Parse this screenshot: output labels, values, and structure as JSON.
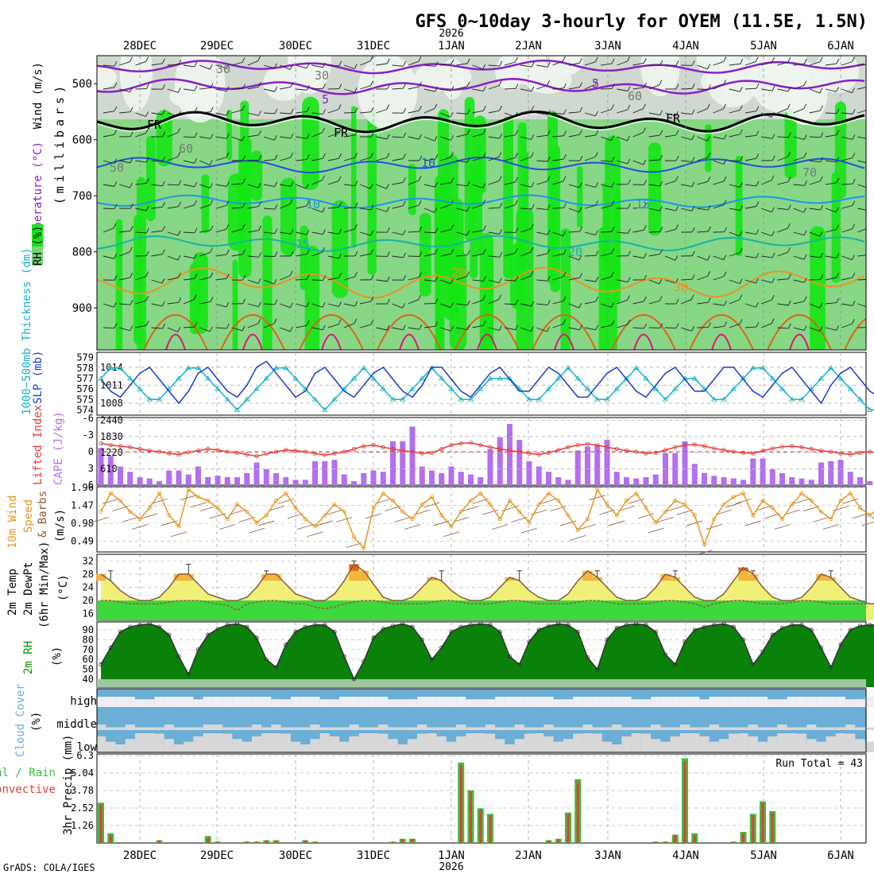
{
  "header": {
    "title": "GFS 0~10day 3-hourly for OYEM (11.5E, 1.5N)",
    "year": "2026",
    "credit": "GrADS: COLA/IGES"
  },
  "colors": {
    "rh_light": "#cfd9cf",
    "rh_mid": "#7ad67a",
    "rh_high": "#14e614",
    "temp_5_upper": "#8c1ec8",
    "temp_fr": "#000000",
    "temp_m5": "#1e50dc",
    "temp_10": "#1e96e6",
    "temp_15": "#14b4a0",
    "temp_20": "#e6961e",
    "temp_25": "#dc6414",
    "temp_30": "#dc1478",
    "slp": "#1e3cc8",
    "thickness": "#14b4c8",
    "lifted_index": "#e63c3c",
    "cape": "#b46ef0",
    "wind_speed": "#e6961e",
    "barb": "#8c5a3c",
    "temp_fill_low": "#f0f078",
    "temp_fill_mid": "#f5b43c",
    "temp_fill_high": "#e6641e",
    "dewpoint": "#a05050",
    "rh_green": "#0a960a",
    "cloud_blue": "#6baed6",
    "cloud_light": "#f0eef5",
    "cloud_gray": "#d8d8d8",
    "precip_total": "#3cbe3c",
    "precip_conv": "#e63c3c"
  },
  "dates": [
    "28DEC",
    "29DEC",
    "30DEC",
    "31DEC",
    "1JAN",
    "2JAN",
    "3JAN",
    "4JAN",
    "5JAN",
    "6JAN"
  ],
  "panels": {
    "upper": {
      "label_wind": "Wind (m/s)",
      "label_temp": "Temperature (°C)",
      "label_rh": "RH (%)",
      "label_mb": "(millibars)",
      "pressure_ticks": [
        "500",
        "600",
        "700",
        "800",
        "900"
      ],
      "contour_labels": [
        "5",
        "FR",
        "FR",
        "FR",
        "5",
        "10",
        "10",
        "15",
        "15",
        "20",
        "20",
        "30",
        "30",
        "30",
        "60",
        "60",
        "50",
        "70"
      ]
    },
    "slp": {
      "label_thick": "1000~500mb Thickness (dm)",
      "label_slp": "SLP (mb)",
      "left_ticks": [
        "579",
        "578",
        "577",
        "576",
        "575",
        "574"
      ],
      "right_ticks": [
        "1014",
        "1011",
        "1008"
      ]
    },
    "cape": {
      "label_li": "Lifted Index",
      "label_cape": "CAPE (J/kg)",
      "left_ticks": [
        "-6",
        "-3",
        "0",
        "3",
        "6"
      ],
      "right_ticks": [
        "2440",
        "1830",
        "1220",
        "610"
      ]
    },
    "wind10m": {
      "label1": "10m Wind",
      "label2": "Speed",
      "label3": "& Barbs",
      "label_unit": "(m/s)",
      "ticks": [
        "1.96",
        "1.47",
        "0.98",
        "0.49"
      ]
    },
    "temp2m": {
      "label1": "2m Temp",
      "label2": "2m DewPt",
      "label3": "(6hr Min/Max)",
      "label_unit": "(°C)",
      "ticks": [
        "32",
        "28",
        "24",
        "20",
        "16"
      ]
    },
    "rh2m": {
      "label": "2m RH",
      "label_unit": "(%)",
      "ticks": [
        "90",
        "80",
        "70",
        "60",
        "50",
        "40"
      ]
    },
    "cloud": {
      "label": "Cloud Cover",
      "label_unit": "(%)",
      "levels": [
        "high",
        "middle",
        "low"
      ]
    },
    "precip": {
      "label1": "Total / Rain",
      "label2": "Convective",
      "label_axis": "3hr Precip (mm)",
      "ticks": [
        "6.3",
        "5.04",
        "3.78",
        "2.52",
        "1.26"
      ],
      "run_total": "Run Total = 43"
    }
  },
  "chart_data": {
    "type": "line",
    "x_labels": [
      "28DEC",
      "29DEC",
      "30DEC",
      "31DEC",
      "1JAN",
      "2JAN",
      "3JAN",
      "4JAN",
      "5JAN",
      "6JAN"
    ],
    "step_hours": 3,
    "slp_mb": [
      1012,
      1010,
      1009,
      1011,
      1013,
      1014,
      1012,
      1010,
      1008,
      1010,
      1013,
      1014,
      1012,
      1010,
      1009,
      1011,
      1014,
      1015,
      1013,
      1011,
      1009,
      1010,
      1013,
      1014,
      1012,
      1010,
      1009,
      1011,
      1013,
      1014,
      1012,
      1010,
      1009,
      1011,
      1014,
      1014,
      1012,
      1010,
      1009,
      1011,
      1013,
      1014,
      1012,
      1010,
      1010,
      1012,
      1014,
      1013,
      1011,
      1009,
      1009,
      1011,
      1013,
      1014,
      1012,
      1010,
      1009,
      1011,
      1013,
      1014,
      1012,
      1010,
      1010,
      1012,
      1014,
      1014,
      1012,
      1010,
      1009,
      1011,
      1013,
      1014,
      1012,
      1010,
      1008,
      1011,
      1013,
      1014,
      1012,
      1010,
      1009
    ],
    "thickness_dm": [
      577,
      578,
      578,
      577,
      576,
      575,
      575,
      576,
      577,
      578,
      578,
      577,
      576,
      575,
      574,
      575,
      576,
      577,
      578,
      578,
      577,
      576,
      575,
      574,
      575,
      576,
      577,
      578,
      577,
      576,
      575,
      575,
      576,
      577,
      578,
      577,
      576,
      575,
      575,
      576,
      577,
      577,
      577,
      576,
      575,
      575,
      576,
      577,
      578,
      577,
      576,
      575,
      575,
      576,
      577,
      578,
      577,
      576,
      575,
      576,
      577,
      577,
      576,
      575,
      575,
      576,
      577,
      578,
      578,
      577,
      576,
      575,
      575,
      576,
      577,
      578,
      577,
      576,
      575,
      574,
      574
    ],
    "lifted_index": [
      -1.5,
      -1.2,
      -1,
      -0.8,
      -0.5,
      -0.2,
      0,
      0.3,
      0.5,
      0.1,
      -0.2,
      -0.5,
      -0.3,
      0,
      0.2,
      0.5,
      0.8,
      0.4,
      0,
      -0.3,
      -0.2,
      0,
      0.3,
      0.6,
      0.3,
      0,
      -0.5,
      -1,
      -1.2,
      -0.8,
      -0.5,
      -0.2,
      0,
      0.3,
      0.2,
      -0.5,
      -1.2,
      -1.5,
      -1.6,
      -1.2,
      -0.8,
      -0.5,
      -0.2,
      0,
      0.3,
      0.5,
      0.2,
      -0.3,
      -0.8,
      -1.2,
      -1.4,
      -1.2,
      -0.8,
      -0.5,
      -0.2,
      0,
      0.3,
      0.2,
      -0.3,
      -0.8,
      -1.2,
      -1.3,
      -1,
      -0.6,
      -0.3,
      0,
      0.2,
      0.3,
      -0.2,
      -0.6,
      -0.9,
      -1,
      -0.8,
      -0.5,
      -0.2,
      0,
      0.3,
      0.5,
      0.2,
      0,
      0.2
    ],
    "cape_jkg": [
      1400,
      1100,
      700,
      500,
      300,
      250,
      150,
      550,
      550,
      400,
      700,
      300,
      350,
      300,
      300,
      450,
      850,
      600,
      450,
      300,
      200,
      200,
      900,
      900,
      950,
      400,
      150,
      450,
      550,
      500,
      1650,
      1650,
      2200,
      700,
      550,
      450,
      700,
      500,
      400,
      300,
      1350,
      1800,
      2300,
      1700,
      900,
      700,
      500,
      300,
      200,
      1300,
      1450,
      1500,
      1700,
      500,
      300,
      250,
      300,
      400,
      1200,
      1200,
      1650,
      800,
      450,
      350,
      300,
      250,
      200,
      1000,
      1000,
      600,
      450,
      300,
      250,
      200,
      850,
      900,
      950,
      500,
      300,
      150,
      150
    ],
    "wind10m_speed_ms": [
      1.3,
      1.8,
      1.6,
      1.3,
      1.1,
      1.4,
      1.8,
      1.2,
      0.9,
      1.9,
      1.7,
      1.6,
      1.4,
      1.1,
      1.5,
      1.3,
      1.0,
      1.2,
      1.6,
      1.8,
      1.4,
      1.1,
      0.9,
      1.2,
      1.5,
      1.3,
      0.6,
      0.3,
      1.4,
      1.8,
      1.6,
      1.3,
      1.1,
      1.5,
      1.7,
      1.2,
      0.9,
      1.3,
      1.6,
      1.8,
      1.5,
      1.1,
      1.6,
      1.3,
      1.0,
      1.5,
      1.8,
      1.6,
      1.2,
      0.8,
      1.1,
      1.9,
      1.5,
      1.2,
      1.6,
      1.8,
      1.4,
      1.0,
      1.3,
      1.6,
      1.5,
      1.2,
      0.4,
      1.1,
      1.5,
      1.7,
      1.8,
      1.2,
      1.6,
      1.4,
      1.1,
      1.5,
      1.8,
      1.6,
      1.3,
      1.1,
      1.6,
      1.8,
      1.4,
      1.2,
      1.4
    ],
    "temp2m_c": [
      28,
      26,
      23,
      21,
      20,
      20,
      21,
      24,
      28,
      28,
      25,
      22,
      21,
      20,
      20,
      21,
      24,
      28,
      28,
      25,
      22,
      21,
      20,
      20,
      22,
      26,
      31,
      29,
      25,
      21,
      20,
      20,
      21,
      24,
      27,
      26,
      23,
      21,
      20,
      20,
      21,
      24,
      27,
      26,
      23,
      21,
      20,
      20,
      22,
      26,
      29,
      27,
      24,
      21,
      20,
      20,
      21,
      24,
      28,
      27,
      24,
      21,
      20,
      20,
      22,
      26,
      30,
      28,
      24,
      21,
      20,
      20,
      21,
      24,
      28,
      27,
      24,
      21,
      20,
      19,
      19
    ],
    "temp2m_max_c": [
      null,
      29,
      null,
      null,
      null,
      null,
      null,
      null,
      null,
      31,
      null,
      null,
      null,
      null,
      null,
      null,
      null,
      29,
      null,
      null,
      null,
      null,
      null,
      null,
      null,
      null,
      32,
      null,
      null,
      null,
      null,
      null,
      null,
      null,
      null,
      29,
      null,
      null,
      null,
      null,
      null,
      null,
      null,
      29,
      null,
      null,
      null,
      null,
      null,
      null,
      null,
      29,
      null,
      null,
      null,
      null,
      null,
      null,
      null,
      29,
      null,
      null,
      null,
      null,
      null,
      null,
      null,
      29,
      null,
      null,
      null,
      null,
      null,
      null,
      null,
      29,
      null,
      null,
      null,
      null,
      null
    ],
    "dewpt2m_c": [
      20,
      20,
      19.5,
      19,
      19,
      19,
      19,
      19.5,
      20,
      20,
      20,
      19.5,
      19,
      18.5,
      17,
      19,
      19.5,
      20,
      20,
      19.5,
      19,
      19,
      18,
      17.5,
      18,
      19,
      19.5,
      20,
      20,
      19.5,
      19,
      19,
      19,
      19,
      19.5,
      20,
      20,
      19.5,
      19,
      19,
      19,
      19.5,
      20,
      20,
      19.5,
      19,
      19,
      19,
      19,
      19.5,
      20,
      20,
      19.5,
      19,
      19,
      19,
      19,
      19.5,
      20,
      20,
      19.5,
      19,
      18,
      19,
      19.5,
      20,
      20,
      19.5,
      19,
      19,
      19,
      19.5,
      20,
      20,
      19.5,
      19,
      19,
      19,
      19,
      19,
      19
    ],
    "rh2m_pct": [
      55,
      72,
      88,
      93,
      95,
      96,
      93,
      85,
      63,
      45,
      70,
      85,
      91,
      95,
      96,
      93,
      82,
      60,
      52,
      75,
      88,
      93,
      95,
      95,
      88,
      63,
      40,
      58,
      82,
      91,
      94,
      96,
      93,
      80,
      60,
      72,
      88,
      93,
      95,
      96,
      95,
      88,
      63,
      55,
      78,
      90,
      94,
      96,
      95,
      88,
      62,
      50,
      80,
      92,
      95,
      96,
      95,
      88,
      65,
      55,
      78,
      90,
      93,
      95,
      96,
      93,
      80,
      55,
      68,
      85,
      92,
      95,
      95,
      90,
      72,
      52,
      75,
      90,
      94,
      95,
      95
    ],
    "cloud_high_pct": [
      40,
      40,
      40,
      40,
      30,
      30,
      40,
      40,
      40,
      40,
      30,
      40,
      40,
      40,
      40,
      40,
      40,
      40,
      30,
      30,
      40,
      40,
      40,
      30,
      30,
      40,
      40,
      40,
      40,
      40,
      30,
      30,
      30,
      40,
      40,
      40,
      40,
      40,
      30,
      30,
      30,
      40,
      40,
      40,
      40,
      40,
      40,
      30,
      30,
      40,
      40,
      40,
      40,
      40,
      40,
      30,
      30,
      40,
      40,
      40,
      40,
      40,
      30,
      40,
      40,
      40,
      40,
      40,
      40,
      30,
      30,
      40,
      40,
      40,
      40,
      40,
      40,
      30,
      30,
      40,
      40
    ],
    "cloud_mid_pct": [
      20,
      10,
      10,
      20,
      10,
      10,
      10,
      20,
      10,
      10,
      10,
      20,
      20,
      10,
      10,
      10,
      20,
      10,
      20,
      10,
      10,
      10,
      20,
      10,
      10,
      10,
      20,
      10,
      10,
      20,
      10,
      10,
      10,
      20,
      10,
      10,
      10,
      20,
      10,
      10,
      20,
      10,
      10,
      20,
      10,
      10,
      20,
      10,
      10,
      10,
      20,
      10,
      10,
      20,
      10,
      10,
      10,
      20,
      10,
      10,
      20,
      10,
      10,
      20,
      10,
      10,
      10,
      20,
      10,
      10,
      20,
      10,
      10,
      20,
      10,
      10,
      10,
      20,
      10,
      10,
      20
    ],
    "cloud_low_pct": [
      60,
      40,
      30,
      50,
      80,
      90,
      70,
      50,
      30,
      40,
      60,
      80,
      90,
      70,
      50,
      40,
      60,
      80,
      90,
      70,
      40,
      30,
      50,
      80,
      60,
      40,
      60,
      80,
      90,
      70,
      50,
      30,
      50,
      70,
      80,
      60,
      40,
      60,
      80,
      90,
      70,
      50,
      30,
      50,
      70,
      80,
      60,
      40,
      50,
      70,
      90,
      70,
      40,
      30,
      60,
      80,
      70,
      50,
      40,
      60,
      80,
      90,
      60,
      40,
      50,
      70,
      80,
      60,
      40,
      60,
      80,
      90,
      70,
      50,
      40,
      60,
      80,
      70,
      50,
      40,
      60
    ],
    "precip_total_mm": [
      2.9,
      0.7,
      0,
      0,
      0,
      0,
      0.2,
      0,
      0,
      0,
      0,
      0.5,
      0.1,
      0,
      0,
      0.1,
      0.1,
      0.2,
      0.2,
      0,
      0,
      0.2,
      0.1,
      0,
      0,
      0,
      0,
      0,
      0,
      0,
      0.1,
      0.3,
      0.3,
      0,
      0,
      0,
      0,
      5.8,
      3.8,
      2.5,
      2.1,
      0,
      0,
      0,
      0,
      0,
      0.2,
      0.3,
      2.2,
      4.6,
      0,
      0,
      0,
      0,
      0,
      0,
      0,
      0.1,
      0.1,
      0.6,
      6.1,
      0.7,
      0,
      0,
      0,
      0.1,
      0.8,
      2.1,
      3,
      2.3,
      0,
      0,
      0,
      0,
      0,
      0,
      0,
      0,
      0,
      0,
      0.1
    ],
    "precip_conv_mm": [
      2.8,
      0.6,
      0,
      0,
      0,
      0,
      0.2,
      0,
      0,
      0,
      0,
      0.4,
      0.1,
      0,
      0,
      0.1,
      0.1,
      0.2,
      0.2,
      0,
      0,
      0.2,
      0.1,
      0,
      0,
      0,
      0,
      0,
      0,
      0,
      0.1,
      0.3,
      0.3,
      0,
      0,
      0,
      0,
      5.6,
      3.7,
      2.4,
      2.0,
      0,
      0,
      0,
      0,
      0,
      0.2,
      0.3,
      2.1,
      4.4,
      0,
      0,
      0,
      0,
      0,
      0,
      0,
      0.1,
      0.1,
      0.6,
      5.9,
      0.6,
      0,
      0,
      0,
      0.1,
      0.7,
      2.0,
      2.9,
      2.2,
      0,
      0,
      0,
      0,
      0,
      0,
      0,
      0,
      0,
      0,
      0.1
    ],
    "run_total_mm": 43
  }
}
